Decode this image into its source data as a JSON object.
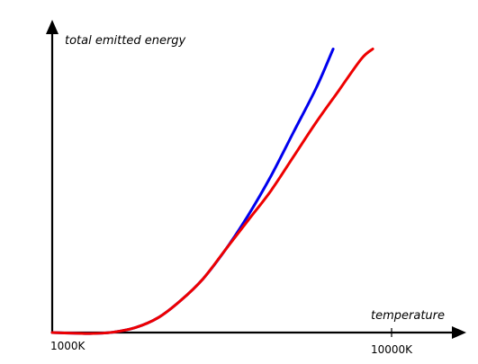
{
  "chart_data": {
    "type": "line",
    "ylabel": "total emitted energy",
    "xlabel": "temperature",
    "x_ticks": [
      {
        "label": "1000K",
        "x": 1000
      },
      {
        "label": "10000K",
        "x": 10000
      }
    ],
    "series": [
      {
        "color": "#0000ee",
        "points": [
          [
            1000,
            0.0
          ],
          [
            2000,
            -0.004
          ],
          [
            2600,
            0.001
          ],
          [
            3200,
            0.02
          ],
          [
            3800,
            0.06
          ],
          [
            4400,
            0.13
          ],
          [
            5000,
            0.22
          ],
          [
            5600,
            0.34
          ],
          [
            6200,
            0.48
          ],
          [
            6800,
            0.64
          ],
          [
            7400,
            0.82
          ],
          [
            8000,
            1.0
          ],
          [
            8450,
            1.16
          ]
        ]
      },
      {
        "color": "#ee0000",
        "points": [
          [
            1000,
            0.0
          ],
          [
            2000,
            -0.004
          ],
          [
            2600,
            0.001
          ],
          [
            3200,
            0.02
          ],
          [
            3800,
            0.06
          ],
          [
            4400,
            0.13
          ],
          [
            5000,
            0.22
          ],
          [
            5600,
            0.34
          ],
          [
            6200,
            0.46
          ],
          [
            6800,
            0.58
          ],
          [
            7400,
            0.72
          ],
          [
            8000,
            0.86
          ],
          [
            8600,
            0.99
          ],
          [
            9200,
            1.12
          ],
          [
            9500,
            1.16
          ]
        ]
      }
    ],
    "xlim": [
      1000,
      11000
    ],
    "ylim": [
      0,
      1.2
    ],
    "grid": false,
    "legend": "none"
  }
}
